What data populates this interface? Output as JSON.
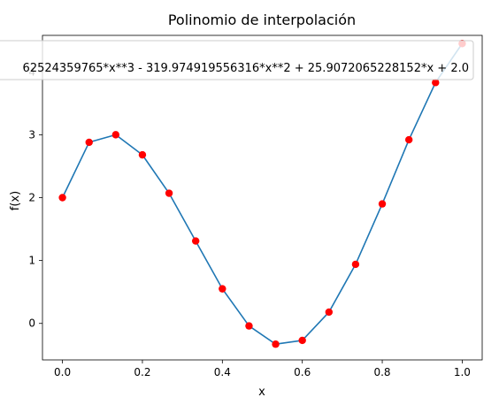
{
  "chart_data": {
    "type": "line",
    "title": "Polinomio de interpolación",
    "xlabel": "x",
    "ylabel": "f(x)",
    "xlim": [
      -0.05,
      1.05
    ],
    "ylim": [
      -0.58,
      4.58
    ],
    "xticks": [
      0.0,
      0.2,
      0.4,
      0.6,
      0.8,
      1.0
    ],
    "xtick_labels": [
      "0.0",
      "0.2",
      "0.4",
      "0.6",
      "0.8",
      "1.0"
    ],
    "yticks": [
      0,
      1,
      2,
      3,
      4
    ],
    "ytick_labels": [
      "0",
      "1",
      "2",
      "3",
      "4"
    ],
    "grid": false,
    "legend": {
      "placement": "top-right",
      "entries": [
        "62524359765*x**3 - 319.974919556316*x**2 + 25.9072065228152*x + 2.0"
      ]
    },
    "x": [
      0.0,
      0.0667,
      0.1333,
      0.2,
      0.2667,
      0.3333,
      0.4,
      0.4667,
      0.5333,
      0.6,
      0.6667,
      0.7333,
      0.8,
      0.8667,
      0.9333,
      1.0
    ],
    "series": [
      {
        "kind": "line",
        "color": "#1f77b4",
        "values": [
          2.0,
          2.88,
          3.0,
          2.68,
          2.07,
          1.31,
          0.55,
          -0.04,
          -0.33,
          -0.27,
          0.18,
          0.94,
          1.9,
          2.92,
          3.83,
          4.45
        ]
      },
      {
        "kind": "scatter",
        "color": "#ff0000",
        "values": [
          2.0,
          2.88,
          3.0,
          2.68,
          2.07,
          1.31,
          0.55,
          -0.04,
          -0.33,
          -0.27,
          0.18,
          0.94,
          1.9,
          2.92,
          3.83,
          4.45
        ]
      }
    ]
  }
}
